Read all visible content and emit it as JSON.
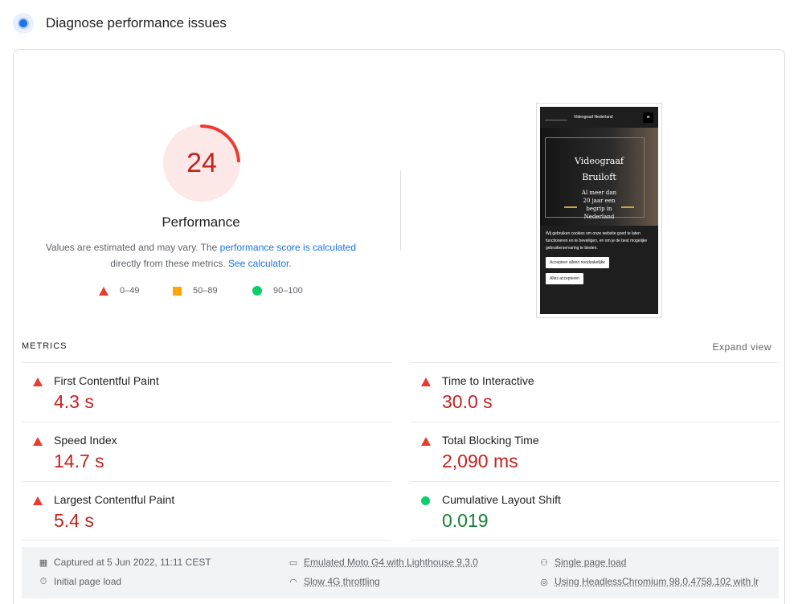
{
  "header": {
    "title": "Diagnose performance issues"
  },
  "gauge": {
    "score": "24",
    "score_fraction": 0.24,
    "color": "#eb3b2f",
    "label": "Performance",
    "desc_prefix": "Values are estimated and may vary. The ",
    "desc_link1": "performance score is calculated",
    "desc_mid": " directly from these metrics. ",
    "desc_link2": "See calculator",
    "desc_suffix": "."
  },
  "legend": [
    {
      "range": "0–49",
      "icon": "triangle-icon",
      "color": "#eb3b2f"
    },
    {
      "range": "50–89",
      "icon": "square-icon",
      "color": "#ffa400"
    },
    {
      "range": "90–100",
      "icon": "circle-icon",
      "color": "#0cce6b"
    }
  ],
  "screenshot": {
    "site_name": "Videograaf Nederland",
    "hero_title_line1": "Videograaf",
    "hero_title_line2": "Bruiloft",
    "hero_sub_line1": "Al meer dan",
    "hero_sub_line2": "20 jaar een",
    "hero_sub_line3": "begrip in",
    "hero_sub_line4": "Nederland",
    "cookie_text": "Wij gebruiken cookies om onze website goed te laten functioneren en te beveiligen, en om je de best mogelijke gebruikerservaring te bieden.",
    "btn_necessary": "Accepteer alleen noodzakelijke",
    "btn_all": "Alles accepteren"
  },
  "metrics": {
    "title": "METRICS",
    "expand": "Expand view",
    "items": [
      {
        "name": "First Contentful Paint",
        "value": "4.3 s",
        "status": "poor"
      },
      {
        "name": "Time to Interactive",
        "value": "30.0 s",
        "status": "poor"
      },
      {
        "name": "Speed Index",
        "value": "14.7 s",
        "status": "poor"
      },
      {
        "name": "Total Blocking Time",
        "value": "2,090 ms",
        "status": "poor"
      },
      {
        "name": "Largest Contentful Paint",
        "value": "5.4 s",
        "status": "poor"
      },
      {
        "name": "Cumulative Layout Shift",
        "value": "0.019",
        "status": "good"
      }
    ]
  },
  "footer": {
    "captured": "Captured at 5 Jun 2022, 11:11 CEST",
    "initial_load": "Initial page load",
    "device": "Emulated Moto G4 with Lighthouse 9.3.0",
    "throttling": "Slow 4G throttling",
    "single_load": "Single page load",
    "browser": "Using HeadlessChromium 98.0.4758.102 with lr"
  }
}
